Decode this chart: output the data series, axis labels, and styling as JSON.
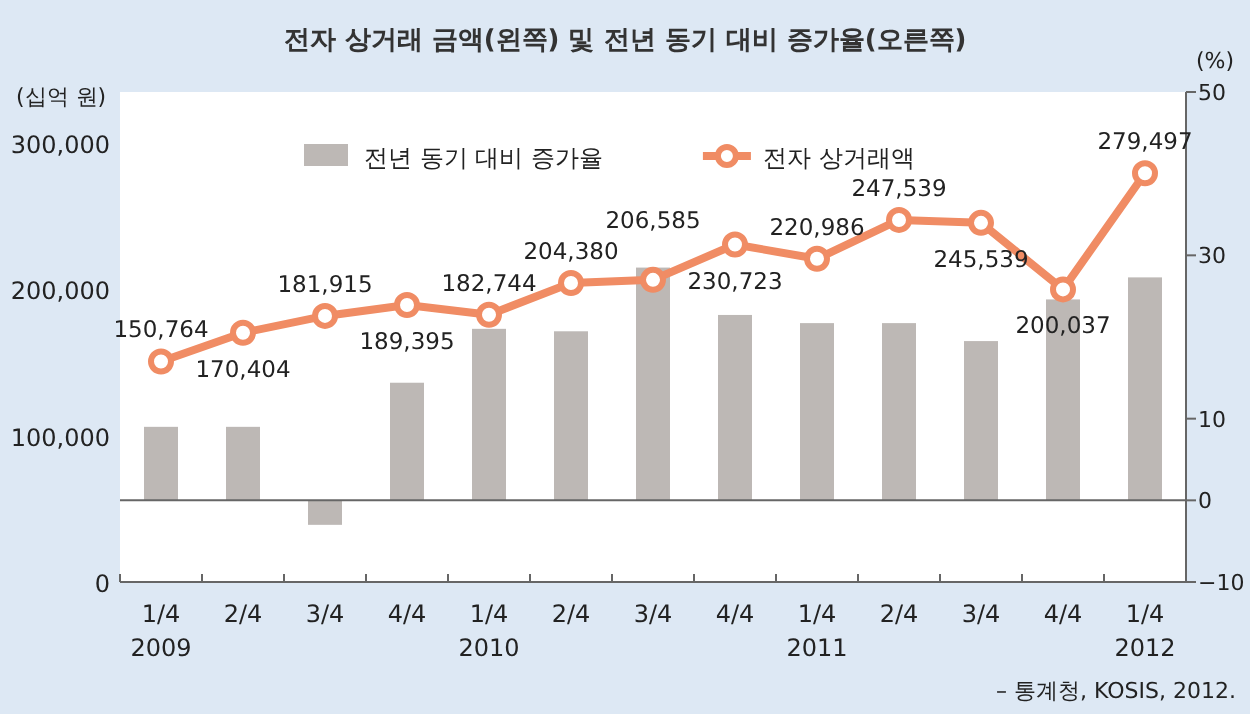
{
  "chart_data": {
    "type": "bar",
    "title": "전자 상거래 금액(왼쪽) 및 전년 동기 대비 증가율(오른쪽)",
    "ylabel": "(십억 원)",
    "y2label": "(%)",
    "categories": [
      "1/4 2009",
      "2/4",
      "3/4",
      "4/4",
      "1/4 2010",
      "2/4",
      "3/4",
      "4/4",
      "1/4 2011",
      "2/4",
      "3/4",
      "4/4",
      "1/4 2012"
    ],
    "series": [
      {
        "name": "전년 동기 대비 증가율",
        "axis": "y2",
        "color": "#bdb8b5",
        "values": [
          9,
          9,
          -3,
          14.4,
          21,
          20.7,
          28.5,
          22.7,
          21.7,
          21.7,
          19.5,
          24.6,
          27.3
        ]
      },
      {
        "name": "전자 상거래액",
        "type": "line",
        "color": "#f08c64",
        "values": [
          150764,
          170404,
          181915,
          189395,
          182744,
          204380,
          206585,
          230723,
          220986,
          247539,
          245539,
          200037,
          279497
        ],
        "value_labels": [
          "150,764",
          "170,404",
          "181,915",
          "189,395",
          "182,744",
          "204,380",
          "206,585",
          "230,723",
          "220,986",
          "247,539",
          "245,539",
          "200,037",
          "279,497"
        ]
      }
    ],
    "ylim": [
      0,
      335000
    ],
    "yticks": [
      {
        "value": 0,
        "label": "0"
      },
      {
        "value": 100000,
        "label": "100,000"
      },
      {
        "value": 200000,
        "label": "200,000"
      },
      {
        "value": 300000,
        "label": "300,000"
      }
    ],
    "y2lim": [
      -10,
      50
    ],
    "y2ticks": [
      -10,
      0,
      10,
      30,
      50
    ],
    "ref_lines": [
      {
        "axis": "y2",
        "value": 0
      }
    ],
    "legend": "top",
    "marker": "circle",
    "annotations": [
      "– 통계청, KOSIS, 2012."
    ]
  }
}
